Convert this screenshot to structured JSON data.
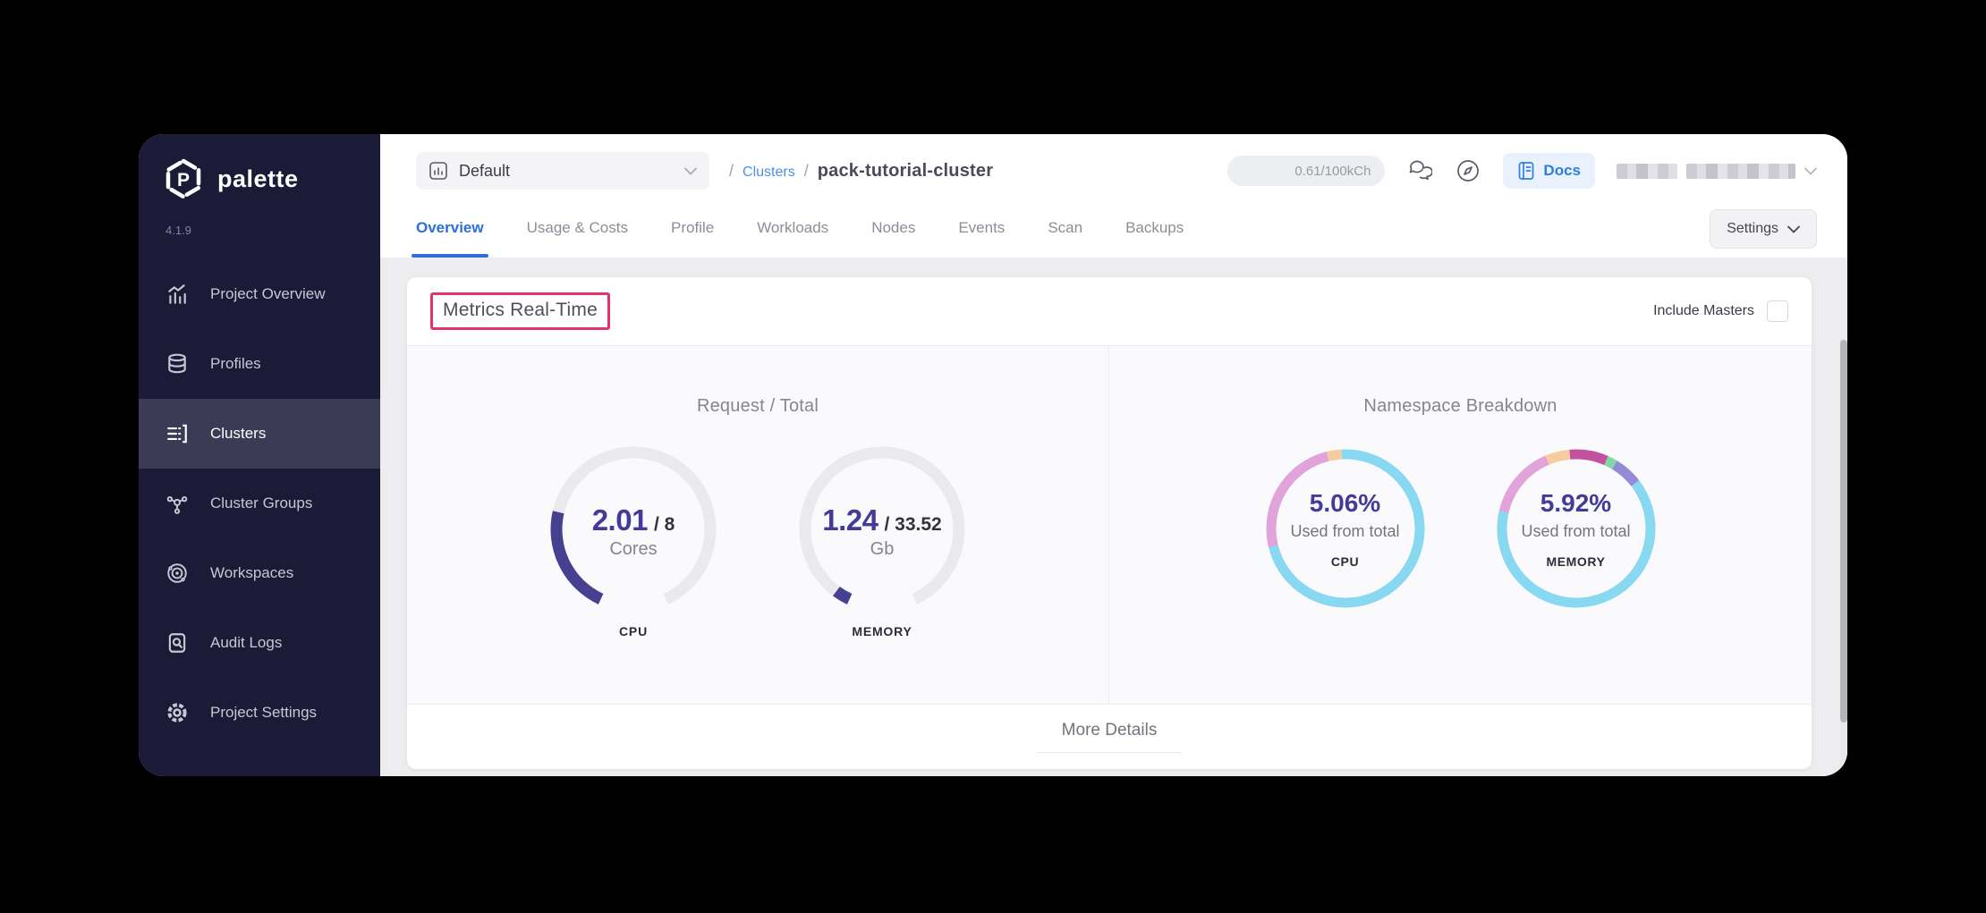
{
  "app": {
    "name": "palette",
    "version": "4.1.9"
  },
  "sidebar": {
    "items": [
      {
        "label": "Project Overview",
        "icon": "bar-chart-icon",
        "active": false
      },
      {
        "label": "Profiles",
        "icon": "database-icon",
        "active": false
      },
      {
        "label": "Clusters",
        "icon": "server-list-icon",
        "active": true
      },
      {
        "label": "Cluster Groups",
        "icon": "network-icon",
        "active": false
      },
      {
        "label": "Workspaces",
        "icon": "orbit-icon",
        "active": false
      },
      {
        "label": "Audit Logs",
        "icon": "doc-search-icon",
        "active": false
      },
      {
        "label": "Project Settings",
        "icon": "gear-icon",
        "active": false
      }
    ]
  },
  "topbar": {
    "project_selector": {
      "value": "Default",
      "icon": "mini-chart-icon"
    },
    "breadcrumb": {
      "separator": "/",
      "section": "Clusters",
      "current": "pack-tutorial-cluster"
    },
    "usage_badge": "0.61/100kCh",
    "docs_label": "Docs",
    "user": {
      "name_redacted": true
    }
  },
  "tabs": {
    "items": [
      "Overview",
      "Usage & Costs",
      "Profile",
      "Workloads",
      "Nodes",
      "Events",
      "Scan",
      "Backups"
    ],
    "active": "Overview",
    "settings_label": "Settings"
  },
  "metrics": {
    "title": "Metrics Real-Time",
    "include_masters_label": "Include Masters",
    "include_masters_checked": false,
    "more_details_label": "More Details"
  },
  "colors": {
    "sidebar_bg": "#1b1b38",
    "sidebar_active_bg": "#3b3b55",
    "accent_blue": "#2e6fd6",
    "link_blue": "#4a90dd",
    "docs_blue": "#2e7de2",
    "indigo": "#433b97",
    "gauge_fill": "#474090",
    "gauge_track": "#e9e9ee",
    "annotation_pink": "#e3336e",
    "donut_cyan": "#87d8f0",
    "donut_pink": "#e0a4da",
    "donut_peach": "#f6cb9e",
    "donut_magenta": "#c2529e",
    "donut_green": "#82d8a2",
    "donut_purple": "#938ad8"
  },
  "chart_data": [
    {
      "type": "gauge",
      "panel_title": "Request / Total",
      "arc_span_deg": 310,
      "gauges": [
        {
          "metric": "CPU",
          "value": 2.01,
          "capacity": 8,
          "unit": "Cores",
          "value_display": "2.01",
          "capacity_display": "/ 8",
          "fill_color": "#474090",
          "track_color": "#e9e9ee"
        },
        {
          "metric": "MEMORY",
          "value": 1.24,
          "capacity": 33.52,
          "unit": "Gb",
          "value_display": "1.24",
          "capacity_display": "/ 33.52",
          "fill_color": "#474090",
          "track_color": "#e9e9ee"
        }
      ]
    },
    {
      "type": "donut",
      "panel_title": "Namespace Breakdown",
      "donuts": [
        {
          "metric": "CPU",
          "percent": 5.06,
          "percent_display": "5.06%",
          "center_label": "Used from total",
          "start_angle": -3,
          "segments": [
            {
              "color": "#87d8f0",
              "fraction": 0.72
            },
            {
              "color": "#e0a4da",
              "fraction": 0.25
            },
            {
              "color": "#f6cb9e",
              "fraction": 0.03
            }
          ]
        },
        {
          "metric": "MEMORY",
          "percent": 5.92,
          "percent_display": "5.92%",
          "center_label": "Used from total",
          "start_angle": -5,
          "segments": [
            {
              "color": "#c2529e",
              "fraction": 0.08
            },
            {
              "color": "#82d8a2",
              "fraction": 0.02
            },
            {
              "color": "#938ad8",
              "fraction": 0.06
            },
            {
              "color": "#87d8f0",
              "fraction": 0.64
            },
            {
              "color": "#e0a4da",
              "fraction": 0.15
            },
            {
              "color": "#f6cb9e",
              "fraction": 0.05
            }
          ]
        }
      ]
    }
  ]
}
